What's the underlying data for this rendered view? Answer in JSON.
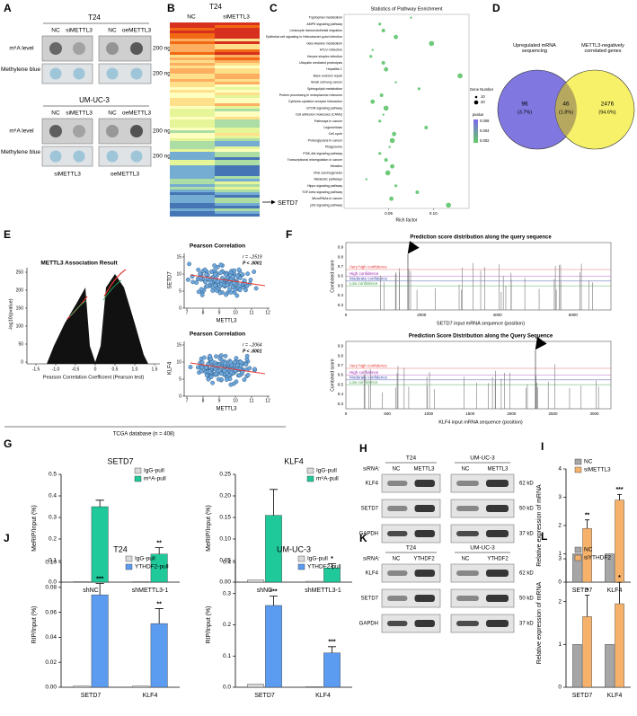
{
  "panel_a": {
    "label": "A",
    "groups": [
      {
        "title": "T24",
        "columns": [
          "NC",
          "siMETTL3",
          "NC",
          "oeMETTL3"
        ],
        "rows": [
          "m⁶A level",
          "Methylene blue"
        ],
        "amount": [
          "200 ng",
          "200 ng"
        ]
      },
      {
        "title": "UM-UC-3",
        "columns": [
          "NC",
          "siMETTL3",
          "NC",
          "oeMETTL3"
        ],
        "rows": [
          "m⁶A level",
          "Methylene blue"
        ],
        "amount": [
          "200 ng",
          "200 ng"
        ],
        "footer": [
          "siMETTL3",
          "oeMETTL3"
        ]
      }
    ]
  },
  "panel_b": {
    "label": "B",
    "title": "T24",
    "columns": [
      "NC",
      "siMETTL3"
    ],
    "marker": "SETD7"
  },
  "panel_c": {
    "label": "C"
  },
  "panel_d": {
    "label": "D",
    "left_title": "Upregulated mRNA sequencing",
    "right_title": "METTL3-negatively correlated genes",
    "left_count": "96",
    "left_pct": "(3.7%)",
    "mid_count": "46",
    "mid_pct": "(1.8%)",
    "right_count": "2476",
    "right_pct": "(94.6%)"
  },
  "panel_e": {
    "label": "E",
    "volcano_title": "METTL3 Association Result",
    "volcano_ylabel": "-log10(pvalue)",
    "volcano_xlabel": "Pearson Correlation Coefficient (Pearson test)",
    "volcano_xticks": [
      "-1.5",
      "-1.0",
      "-0.5",
      "0",
      "0.5",
      "1.0",
      "1.5"
    ],
    "volcano_yticks": [
      "0",
      "50",
      "100",
      "150",
      "200",
      "250"
    ],
    "scatters": [
      {
        "title": "Pearson Correlation",
        "ylabel": "SETD7",
        "stats": "r = -.2519",
        "p": "P < .0001",
        "xlabel": "METTL3",
        "yticks": [
          "0",
          "5",
          "10",
          "15"
        ],
        "xticks": [
          "7",
          "8",
          "9",
          "10",
          "11",
          "12"
        ]
      },
      {
        "title": "Pearson Correlation",
        "ylabel": "KLF4",
        "stats": "r = -.2064",
        "p": "P < .0001",
        "xlabel": "METTL3",
        "yticks": [
          "0",
          "5",
          "10",
          "15"
        ],
        "xticks": [
          "7",
          "8",
          "9",
          "10",
          "11",
          "12"
        ]
      }
    ],
    "footer": "TCGA database (n = 408)"
  },
  "panel_f": {
    "label": "F",
    "plots": [
      {
        "title": "Prediction score distribution along the query sequence",
        "ylabel": "Combined score",
        "xlabel": "SETD7 input mRNA sequence (position)",
        "xticks": [
          "0",
          "2000",
          "4000",
          "6000"
        ],
        "yticks": [
          "0.3",
          "0.4",
          "0.5",
          "0.6",
          "0.7",
          "0.8",
          "0.9"
        ],
        "legend": [
          "Very high confidence",
          "High confidence",
          "Moderate confidence",
          "Low confidence"
        ]
      },
      {
        "title": "Prediction Score Distribution along the Query Sequence",
        "ylabel": "Combined score",
        "xlabel": "KLF4 input mRNA sequence (position)",
        "xticks": [
          "0",
          "500",
          "1000",
          "1500",
          "2000",
          "2500",
          "3000"
        ],
        "yticks": [
          "0.3",
          "0.4",
          "0.5",
          "0.6",
          "0.7",
          "0.8",
          "0.9"
        ],
        "legend": [
          "Very high confidence",
          "High confidence",
          "Moderate confidence",
          "Low confidence"
        ]
      }
    ]
  },
  "panel_g": {
    "label": "G"
  },
  "panel_h": {
    "label": "H",
    "sirna": "siRNA:",
    "groups": [
      {
        "title": "T24",
        "columns": [
          "NC",
          "METTL3"
        ]
      },
      {
        "title": "UM-UC-3",
        "columns": [
          "NC",
          "METTL3"
        ]
      }
    ],
    "rows": [
      "KLF4",
      "SETD7",
      "GAPDH"
    ],
    "sizes": [
      "62 kD",
      "50 kD",
      "37 kD"
    ]
  },
  "panel_i": {
    "label": "I"
  },
  "panel_j": {
    "label": "J"
  },
  "panel_k": {
    "label": "K",
    "sirna": "siRNA:",
    "groups": [
      {
        "title": "T24",
        "columns": [
          "NC",
          "YTHDF2"
        ]
      },
      {
        "title": "UM-UC-3",
        "columns": [
          "NC",
          "YTHDF2"
        ]
      }
    ],
    "rows": [
      "KLF4",
      "SETD7",
      "GAPDH"
    ],
    "sizes": [
      "62 kD",
      "50 kD",
      "37 kD"
    ]
  },
  "panel_l": {
    "label": "L"
  },
  "chart_data": [
    {
      "type": "scatter",
      "title": "Statistics of Pathway Enrichment",
      "xlabel": "Rich factor",
      "categories": [
        "Tryptophan metabolism",
        "AMPK signaling pathway",
        "Leukocyte transendothelial migration",
        "Epithelial cell signaling in Helicobacter pylori infection",
        "beta-Alanine metabolism",
        "HTLV-I infection",
        "Herpes simplex infection",
        "Ubiquitin mediated proteolysis",
        "Hepatitis C",
        "Base excision repair",
        "Small cell lung cancer",
        "Sphingolipid metabolism",
        "Protein processing in endoplasmic reticulum",
        "Cytokine-cytokine receptor interaction",
        "mTOR signaling pathway",
        "Cell adhesion molecules (CAMs)",
        "Pathways in cancer",
        "Legionellosis",
        "Cell cycle",
        "Proteoglycans in cancer",
        "Phagosome",
        "PI3K-Akt signaling pathway",
        "Transcriptional misregulation in cancer",
        "Measles",
        "Viral carcinogenesis",
        "Metabolic pathways",
        "Hippo signaling pathway",
        "TGF-beta signaling pathway",
        "MicroRNAs in cancer",
        "p53 signaling pathway"
      ],
      "values": [
        0.075,
        0.04,
        0.044,
        0.058,
        0.098,
        0.032,
        0.03,
        0.044,
        0.047,
        0.13,
        0.058,
        0.084,
        0.042,
        0.032,
        0.047,
        0.044,
        0.04,
        0.092,
        0.056,
        0.054,
        0.051,
        0.04,
        0.047,
        0.054,
        0.049,
        0.025,
        0.058,
        0.082,
        0.053,
        0.117
      ],
      "color": "#5cc46a",
      "xlim": [
        0,
        0.14
      ],
      "xticks": [
        0.05,
        {
          "value": 0.1,
          "label": "0.10"
        }
      ],
      "legend_title": "Gene Number",
      "size_legend": [
        10,
        20
      ],
      "color_title": "pvalue",
      "color_ticks": [
        0.006,
        0.004,
        0.002
      ]
    },
    {
      "type": "bar",
      "title": "SETD7",
      "ylabel": "MeRIP/Input (%)",
      "categories": [
        "shNC",
        "shMETTL3-1"
      ],
      "series": [
        {
          "name": "IgG-pull",
          "color": "#d9d9d9",
          "values": [
            0.002,
            0.002
          ]
        },
        {
          "name": "m⁶A-pull",
          "color": "#1fc99a",
          "values": [
            0.35,
            0.13
          ],
          "errors": [
            0.03,
            0.03
          ],
          "significance": [
            null,
            "**"
          ]
        }
      ],
      "ylim": [
        0,
        0.5
      ],
      "yticks": [
        {
          "value": 0,
          "label": "0.0"
        },
        0.1,
        0.2,
        0.3,
        0.4,
        0.5
      ]
    },
    {
      "type": "bar",
      "title": "KLF4",
      "ylabel": "MeRIP/Input (%)",
      "categories": [
        "shNC",
        "shMETTL3-1"
      ],
      "series": [
        {
          "name": "IgG-pull",
          "color": "#d9d9d9",
          "values": [
            0.005,
            0.002
          ]
        },
        {
          "name": "m⁶A-pull",
          "color": "#1fc99a",
          "values": [
            0.155,
            0.033
          ],
          "errors": [
            0.06,
            0.01
          ],
          "significance": [
            null,
            "*"
          ]
        }
      ],
      "ylim": [
        0,
        0.25
      ],
      "yticks": [
        {
          "value": 0,
          "label": "0.00"
        },
        0.05,
        {
          "value": 0.1,
          "label": "0.10"
        },
        0.15,
        {
          "value": 0.2,
          "label": "0.20"
        },
        0.25
      ]
    },
    {
      "type": "bar",
      "ylabel": "Relative expression of mRNA",
      "categories": [
        "SETD7",
        "KLF4"
      ],
      "series": [
        {
          "name": "NC",
          "color": "#a6a6a6",
          "values": [
            1,
            1
          ]
        },
        {
          "name": "siMETTL3",
          "color": "#f6b26b",
          "values": [
            1.9,
            2.9
          ],
          "errors": [
            0.3,
            0.2
          ],
          "significance": [
            "**",
            "***"
          ]
        }
      ],
      "ylim": [
        0,
        4
      ],
      "yticks": [
        0,
        1,
        2,
        3,
        4
      ]
    },
    {
      "type": "bar",
      "title": "T24",
      "ylabel": "RIP/Input (%)",
      "categories": [
        "SETD7",
        "KLF4"
      ],
      "series": [
        {
          "name": "IgG-pull",
          "color": "#d9d9d9",
          "values": [
            0.001,
            0.001
          ]
        },
        {
          "name": "YTHDF2-pull",
          "color": "#5b9bf0",
          "values": [
            0.074,
            0.051
          ],
          "errors": [
            0.009,
            0.012
          ],
          "significance": [
            "***",
            "**"
          ]
        }
      ],
      "ylim": [
        0,
        0.1
      ],
      "yticks": [
        {
          "value": 0,
          "label": "0.00"
        },
        0.02,
        0.04,
        0.06,
        0.08,
        {
          "value": 0.1,
          "label": "0.10"
        }
      ]
    },
    {
      "type": "bar",
      "title": "UM-UC-3",
      "ylabel": "RIP/Input (%)",
      "categories": [
        "SETD7",
        "KLF4"
      ],
      "series": [
        {
          "name": "IgG-pull",
          "color": "#d9d9d9",
          "values": [
            0.01,
            0.002
          ]
        },
        {
          "name": "YTHDF2-pull",
          "color": "#5b9bf0",
          "values": [
            0.262,
            0.11
          ],
          "errors": [
            0.03,
            0.02
          ],
          "significance": [
            "***",
            "***"
          ]
        }
      ],
      "ylim": [
        0,
        0.4
      ],
      "yticks": [
        {
          "value": 0,
          "label": "0.0"
        },
        0.1,
        0.2,
        0.3,
        0.4
      ]
    },
    {
      "type": "bar",
      "ylabel": "Relative expression of mRNA",
      "categories": [
        "SETD7",
        "KLF4"
      ],
      "series": [
        {
          "name": "NC",
          "color": "#a6a6a6",
          "values": [
            1,
            1
          ]
        },
        {
          "name": "siYTHDF2",
          "color": "#f6b26b",
          "values": [
            1.65,
            1.95
          ],
          "errors": [
            0.5,
            0.5
          ],
          "significance": [
            "*",
            "*"
          ]
        }
      ],
      "ylim": [
        0,
        3
      ],
      "yticks": [
        0,
        1,
        2,
        3
      ]
    }
  ]
}
